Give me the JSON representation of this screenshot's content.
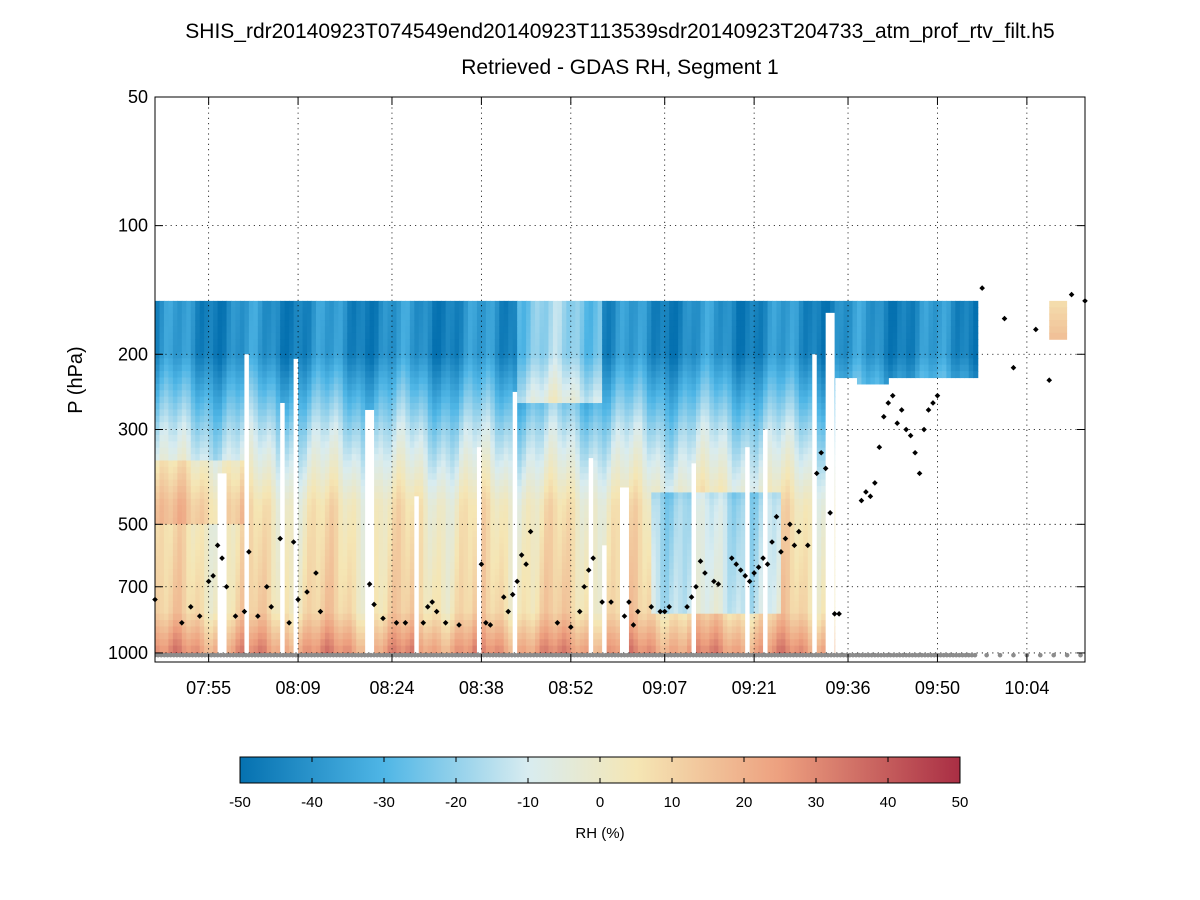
{
  "chart_data": {
    "type": "heatmap",
    "title": "SHIS_rdr20140923T074549end20140923T113539sdr20140923T204733_atm_prof_rtv_filt.h5",
    "subtitle": "Retrieved - GDAS RH, Segment 1",
    "ylabel": "P (hPa)",
    "yscale": "log",
    "yreversed": true,
    "ylim": [
      50,
      1050
    ],
    "yticks": [
      50,
      100,
      200,
      300,
      500,
      700,
      1000
    ],
    "ytick_labels": [
      "50",
      "100",
      "200",
      "300",
      "500",
      "700",
      "1000"
    ],
    "xlim": [
      0,
      208
    ],
    "xticks": [
      12,
      32,
      53,
      73,
      93,
      114,
      134,
      155,
      175,
      195
    ],
    "xtick_labels": [
      "07:55",
      "08:09",
      "08:24",
      "08:38",
      "08:52",
      "09:07",
      "09:21",
      "09:36",
      "09:50",
      "10:04"
    ],
    "grid": true,
    "colorbar": {
      "label": "RH (%)",
      "range": [
        -50,
        50
      ],
      "ticks": [
        -50,
        -40,
        -30,
        -20,
        -10,
        0,
        10,
        20,
        30,
        40,
        50
      ],
      "tick_labels": [
        "-50",
        "-40",
        "-30",
        "-20",
        "-10",
        "0",
        "10",
        "20",
        "30",
        "40",
        "50"
      ],
      "colors": [
        "#0571b0",
        "#4fb6e6",
        "#d8ecf0",
        "#f5e6b4",
        "#eda07f",
        "#a92e44"
      ]
    },
    "cloud_top_pressure": [
      {
        "t": 0,
        "p": 750
      },
      {
        "t": 6,
        "p": 850
      },
      {
        "t": 8,
        "p": 780
      },
      {
        "t": 10,
        "p": 820
      },
      {
        "t": 12,
        "p": 680
      },
      {
        "t": 13,
        "p": 660
      },
      {
        "t": 14,
        "p": 560
      },
      {
        "t": 15,
        "p": 600
      },
      {
        "t": 16,
        "p": 700
      },
      {
        "t": 18,
        "p": 820
      },
      {
        "t": 20,
        "p": 800
      },
      {
        "t": 21,
        "p": 580
      },
      {
        "t": 23,
        "p": 820
      },
      {
        "t": 25,
        "p": 700
      },
      {
        "t": 26,
        "p": 780
      },
      {
        "t": 28,
        "p": 540
      },
      {
        "t": 30,
        "p": 850
      },
      {
        "t": 31,
        "p": 550
      },
      {
        "t": 32,
        "p": 750
      },
      {
        "t": 34,
        "p": 720
      },
      {
        "t": 36,
        "p": 650
      },
      {
        "t": 37,
        "p": 800
      },
      {
        "t": 48,
        "p": 690
      },
      {
        "t": 49,
        "p": 770
      },
      {
        "t": 51,
        "p": 830
      },
      {
        "t": 54,
        "p": 850
      },
      {
        "t": 56,
        "p": 850
      },
      {
        "t": 60,
        "p": 850
      },
      {
        "t": 61,
        "p": 780
      },
      {
        "t": 62,
        "p": 760
      },
      {
        "t": 63,
        "p": 800
      },
      {
        "t": 65,
        "p": 850
      },
      {
        "t": 68,
        "p": 860
      },
      {
        "t": 73,
        "p": 620
      },
      {
        "t": 74,
        "p": 850
      },
      {
        "t": 75,
        "p": 860
      },
      {
        "t": 78,
        "p": 740
      },
      {
        "t": 79,
        "p": 800
      },
      {
        "t": 80,
        "p": 730
      },
      {
        "t": 81,
        "p": 680
      },
      {
        "t": 82,
        "p": 590
      },
      {
        "t": 83,
        "p": 620
      },
      {
        "t": 84,
        "p": 520
      },
      {
        "t": 90,
        "p": 850
      },
      {
        "t": 93,
        "p": 870
      },
      {
        "t": 95,
        "p": 800
      },
      {
        "t": 96,
        "p": 700
      },
      {
        "t": 97,
        "p": 640
      },
      {
        "t": 98,
        "p": 600
      },
      {
        "t": 100,
        "p": 760
      },
      {
        "t": 102,
        "p": 760
      },
      {
        "t": 105,
        "p": 820
      },
      {
        "t": 106,
        "p": 760
      },
      {
        "t": 107,
        "p": 860
      },
      {
        "t": 108,
        "p": 800
      },
      {
        "t": 111,
        "p": 780
      },
      {
        "t": 113,
        "p": 800
      },
      {
        "t": 114,
        "p": 800
      },
      {
        "t": 115,
        "p": 780
      },
      {
        "t": 119,
        "p": 780
      },
      {
        "t": 120,
        "p": 740
      },
      {
        "t": 121,
        "p": 700
      },
      {
        "t": 122,
        "p": 610
      },
      {
        "t": 123,
        "p": 650
      },
      {
        "t": 125,
        "p": 680
      },
      {
        "t": 126,
        "p": 690
      },
      {
        "t": 129,
        "p": 600
      },
      {
        "t": 130,
        "p": 620
      },
      {
        "t": 131,
        "p": 640
      },
      {
        "t": 132,
        "p": 660
      },
      {
        "t": 133,
        "p": 680
      },
      {
        "t": 134,
        "p": 650
      },
      {
        "t": 135,
        "p": 630
      },
      {
        "t": 136,
        "p": 600
      },
      {
        "t": 137,
        "p": 620
      },
      {
        "t": 138,
        "p": 550
      },
      {
        "t": 139,
        "p": 480
      },
      {
        "t": 140,
        "p": 580
      },
      {
        "t": 141,
        "p": 540
      },
      {
        "t": 142,
        "p": 500
      },
      {
        "t": 143,
        "p": 560
      },
      {
        "t": 144,
        "p": 520
      },
      {
        "t": 146,
        "p": 560
      },
      {
        "t": 148,
        "p": 380
      },
      {
        "t": 149,
        "p": 340
      },
      {
        "t": 150,
        "p": 370
      },
      {
        "t": 151,
        "p": 470
      },
      {
        "t": 152,
        "p": 810
      },
      {
        "t": 153,
        "p": 810
      },
      {
        "t": 158,
        "p": 440
      },
      {
        "t": 159,
        "p": 420
      },
      {
        "t": 160,
        "p": 430
      },
      {
        "t": 161,
        "p": 400
      },
      {
        "t": 162,
        "p": 330
      },
      {
        "t": 163,
        "p": 280
      },
      {
        "t": 164,
        "p": 260
      },
      {
        "t": 165,
        "p": 250
      },
      {
        "t": 166,
        "p": 290
      },
      {
        "t": 167,
        "p": 270
      },
      {
        "t": 168,
        "p": 300
      },
      {
        "t": 169,
        "p": 310
      },
      {
        "t": 170,
        "p": 340
      },
      {
        "t": 171,
        "p": 380
      },
      {
        "t": 172,
        "p": 300
      },
      {
        "t": 173,
        "p": 270
      },
      {
        "t": 174,
        "p": 260
      },
      {
        "t": 175,
        "p": 250
      },
      {
        "t": 185,
        "p": 140
      },
      {
        "t": 190,
        "p": 165
      },
      {
        "t": 192,
        "p": 215
      },
      {
        "t": 197,
        "p": 175
      },
      {
        "t": 200,
        "p": 230
      },
      {
        "t": 205,
        "p": 145
      },
      {
        "t": 208,
        "p": 150
      }
    ],
    "surface_pressure": 1012
  }
}
